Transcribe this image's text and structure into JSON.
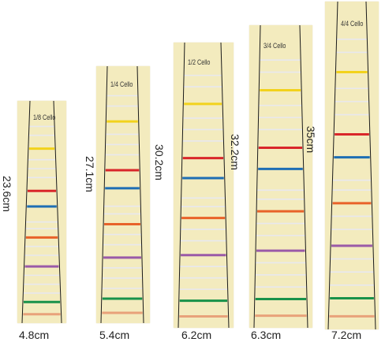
{
  "colors": {
    "background": "#ffffff",
    "paper": "#f3ebbe",
    "guide_line": "#1a1a1a",
    "faint_line": "#e8e8ee",
    "yellow": "#f2d21c",
    "red": "#d9262a",
    "blue": "#1e6eb4",
    "orange": "#e8622a",
    "purple": "#9a5aa8",
    "green": "#18924a",
    "peach": "#e8a27a"
  },
  "strips": [
    {
      "size_label": "1/8 Cello",
      "length_label": "23.6cm",
      "width_label": "4.8cm",
      "frets": [
        {
          "color": "yellow"
        },
        {
          "color": "red"
        },
        {
          "color": "blue"
        },
        {
          "color": "orange"
        },
        {
          "color": "purple"
        },
        {
          "color": "green"
        },
        {
          "color": "peach"
        }
      ]
    },
    {
      "size_label": "1/4 Cello",
      "length_label": "27.1cm",
      "width_label": "5.4cm",
      "frets": [
        {
          "color": "yellow"
        },
        {
          "color": "red"
        },
        {
          "color": "blue"
        },
        {
          "color": "orange"
        },
        {
          "color": "purple"
        },
        {
          "color": "green"
        },
        {
          "color": "peach"
        }
      ]
    },
    {
      "size_label": "1/2 Cello",
      "length_label": "30.2cm",
      "width_label": "6.2cm",
      "frets": [
        {
          "color": "yellow"
        },
        {
          "color": "red"
        },
        {
          "color": "blue"
        },
        {
          "color": "orange"
        },
        {
          "color": "purple"
        },
        {
          "color": "green"
        },
        {
          "color": "peach"
        }
      ]
    },
    {
      "size_label": "3/4 Cello",
      "length_label": "32.2cm",
      "width_label": "6.3cm",
      "frets": [
        {
          "color": "yellow"
        },
        {
          "color": "red"
        },
        {
          "color": "blue"
        },
        {
          "color": "orange"
        },
        {
          "color": "purple"
        },
        {
          "color": "green"
        },
        {
          "color": "peach"
        }
      ]
    },
    {
      "size_label": "4/4 Cello",
      "length_label": "35cm",
      "width_label": "7.2cm",
      "frets": [
        {
          "color": "yellow"
        },
        {
          "color": "red"
        },
        {
          "color": "blue"
        },
        {
          "color": "orange"
        },
        {
          "color": "purple"
        },
        {
          "color": "green"
        },
        {
          "color": "peach"
        }
      ]
    }
  ]
}
